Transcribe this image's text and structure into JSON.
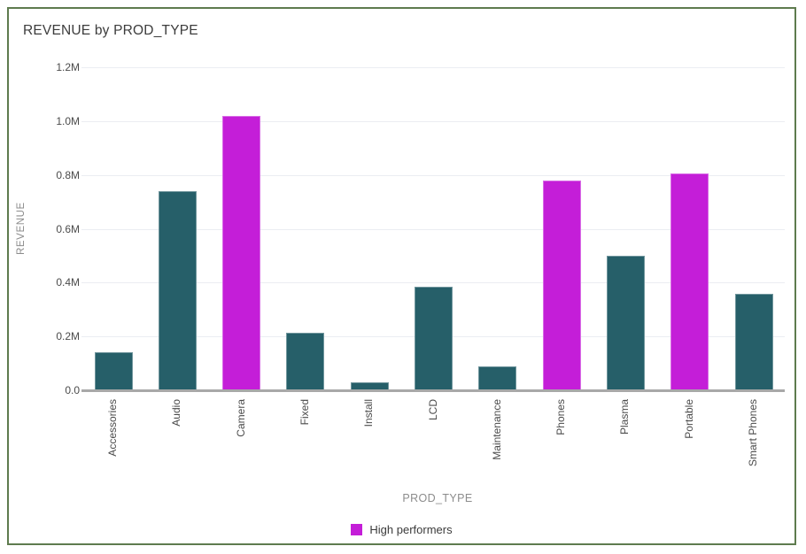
{
  "header": {
    "title": "REVENUE by PROD_TYPE"
  },
  "legend": {
    "items": [
      {
        "label": "High performers",
        "color": "#c41ed8"
      }
    ]
  },
  "colors": {
    "bar_default": "#265f69",
    "bar_highlight": "#c41ed8",
    "frame_border": "#5e7b4e",
    "gridline": "#ebedf2",
    "axis_line": "#a8a8a8"
  },
  "chart_data": {
    "type": "bar",
    "title": "REVENUE by PROD_TYPE",
    "xlabel": "PROD_TYPE",
    "ylabel": "REVENUE",
    "categories": [
      "Accessories",
      "Audio",
      "Camera",
      "Fixed",
      "Install",
      "LCD",
      "Maintenance",
      "Phones",
      "Plasma",
      "Portable",
      "Smart Phones"
    ],
    "values": [
      140000,
      740000,
      1020000,
      215000,
      30000,
      385000,
      90000,
      780000,
      500000,
      805000,
      360000
    ],
    "highlighted_categories": [
      "Camera",
      "Phones",
      "Portable"
    ],
    "ylim": [
      0,
      1200000
    ],
    "y_ticks": [
      {
        "label": "1.2M",
        "value": 1200000
      },
      {
        "label": "1.0M",
        "value": 1000000
      },
      {
        "label": "0.8M",
        "value": 800000
      },
      {
        "label": "0.6M",
        "value": 600000
      },
      {
        "label": "0.4M",
        "value": 400000
      },
      {
        "label": "0.2M",
        "value": 200000
      },
      {
        "label": "0.0",
        "value": 0
      }
    ],
    "grid": true,
    "legend_position": "bottom"
  }
}
